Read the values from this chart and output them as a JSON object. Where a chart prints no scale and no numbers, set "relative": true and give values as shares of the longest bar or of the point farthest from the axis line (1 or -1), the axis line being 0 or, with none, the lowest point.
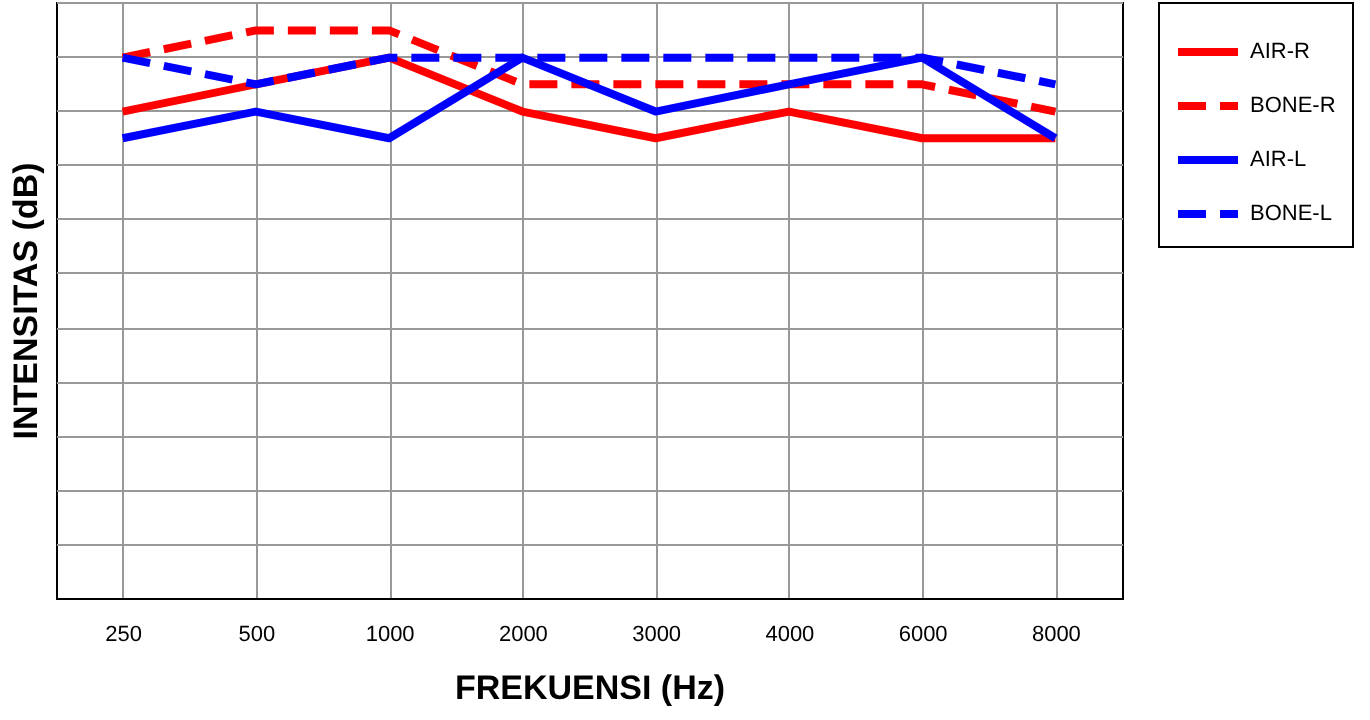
{
  "chart_data": {
    "type": "line",
    "relative": true,
    "xlabel": "FREKUENSI (Hz)",
    "ylabel": "INTENSITAS (dB)",
    "categories": [
      "250",
      "500",
      "1000",
      "2000",
      "3000",
      "4000",
      "6000",
      "8000"
    ],
    "grid": true,
    "legend": "right",
    "marker": "none",
    "series": [
      {
        "name": "AIR-R",
        "color": "#ff0000",
        "line_style": "solid",
        "values": [
          0.857,
          0.905,
          0.952,
          0.857,
          0.81,
          0.857,
          0.81,
          0.81
        ]
      },
      {
        "name": "BONE-R",
        "color": "#ff0000",
        "line_style": "dashed",
        "values": [
          0.952,
          1,
          1,
          0.905,
          0.905,
          0.905,
          0.905,
          0.857
        ]
      },
      {
        "name": "AIR-L",
        "color": "#0000ff",
        "line_style": "solid",
        "values": [
          0.81,
          0.857,
          0.81,
          0.952,
          0.857,
          0.905,
          0.952,
          0.81
        ]
      },
      {
        "name": "BONE-L",
        "color": "#0000ff",
        "line_style": "dashed",
        "values": [
          0.952,
          0.905,
          0.952,
          0.952,
          0.952,
          0.952,
          0.952,
          0.905
        ]
      }
    ]
  }
}
